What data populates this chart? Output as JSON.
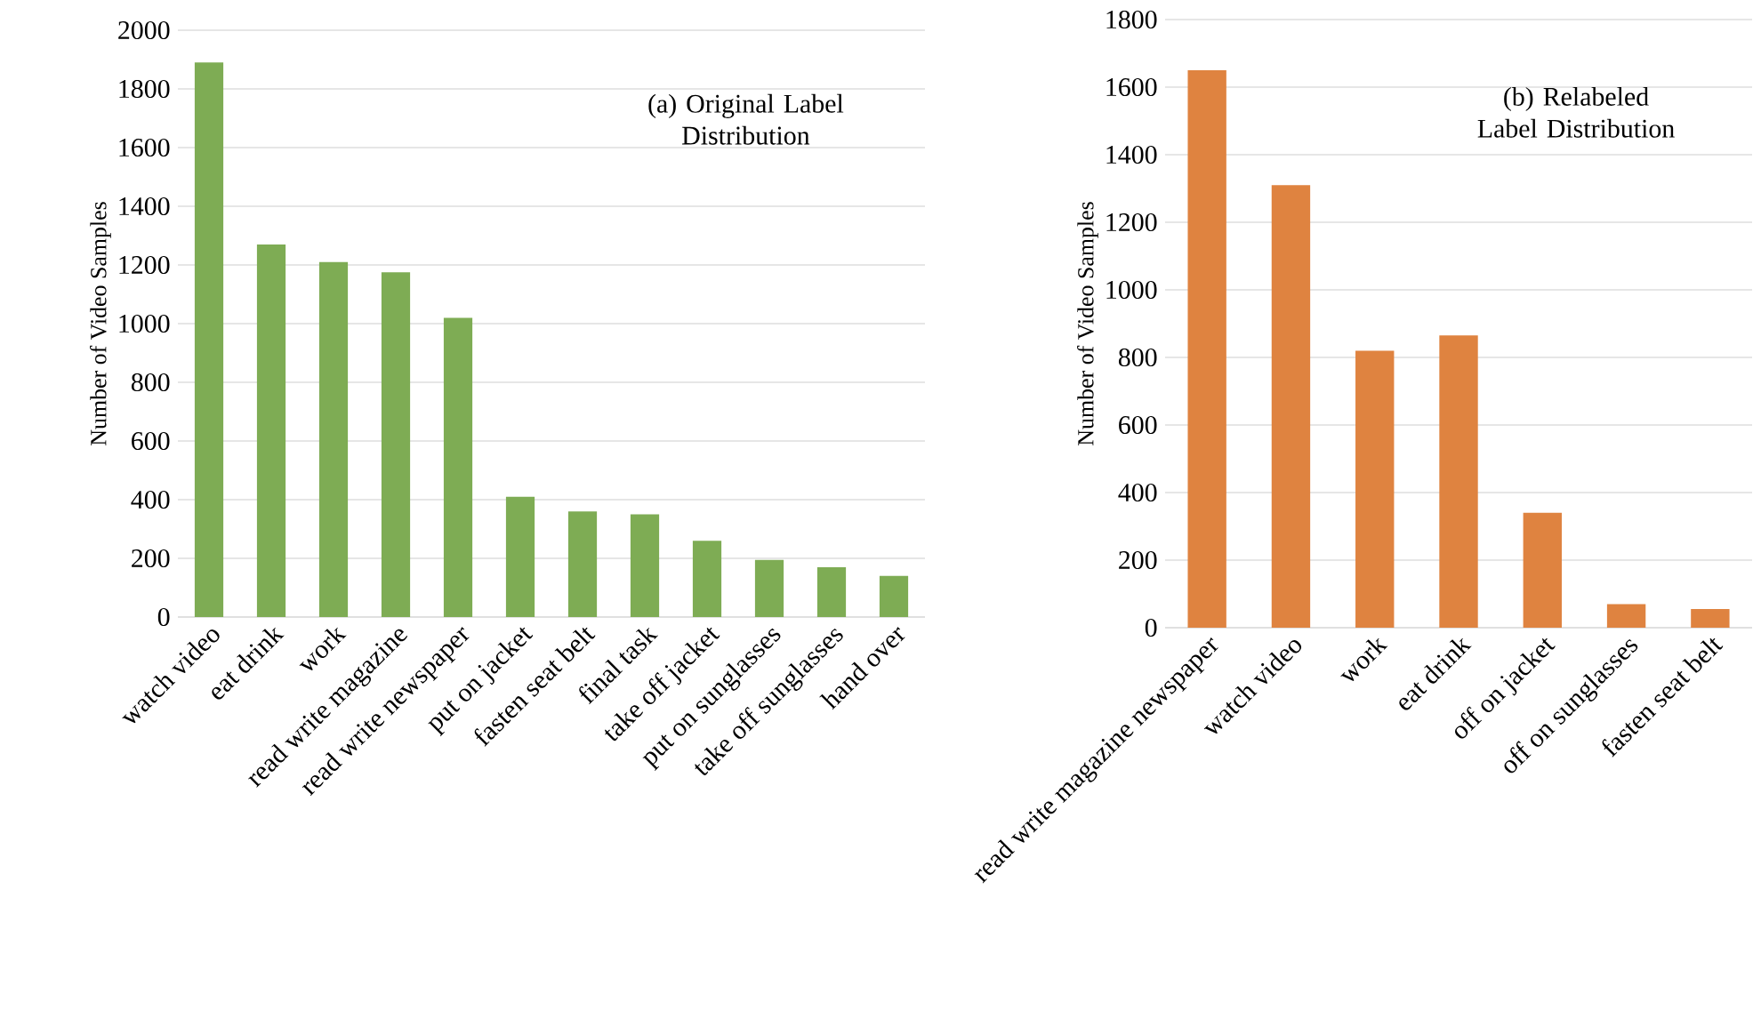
{
  "chart_data": [
    {
      "type": "bar",
      "title": "(a) Original Label Distribution",
      "ylabel": "Number of Video Samples",
      "categories": [
        "watch video",
        "eat drink",
        "work",
        "read write magazine",
        "read write newspaper",
        "put on jacket",
        "fasten seat belt",
        "final task",
        "take off jacket",
        "put on sunglasses",
        "take off sunglasses",
        "hand over"
      ],
      "values": [
        1890,
        1270,
        1210,
        1175,
        1020,
        410,
        360,
        350,
        260,
        195,
        170,
        140
      ],
      "color": "#7eac54",
      "ylim": [
        0,
        2000
      ],
      "yticks": [
        0,
        200,
        400,
        600,
        800,
        1000,
        1200,
        1400,
        1600,
        1800,
        2000
      ],
      "grid": "y"
    },
    {
      "type": "bar",
      "title": "(b) Relabeled Label Distribution",
      "ylabel": "Number of Video Samples",
      "categories": [
        "read write magazine newspaper",
        "watch video",
        "work",
        "eat drink",
        "off on jacket",
        "off on sunglasses",
        "fasten seat belt"
      ],
      "values": [
        1650,
        1310,
        820,
        865,
        340,
        70,
        55
      ],
      "color": "#df8340",
      "ylim": [
        0,
        1800
      ],
      "yticks": [
        0,
        200,
        400,
        600,
        800,
        1000,
        1200,
        1400,
        1600,
        1800
      ],
      "grid": "y"
    }
  ]
}
